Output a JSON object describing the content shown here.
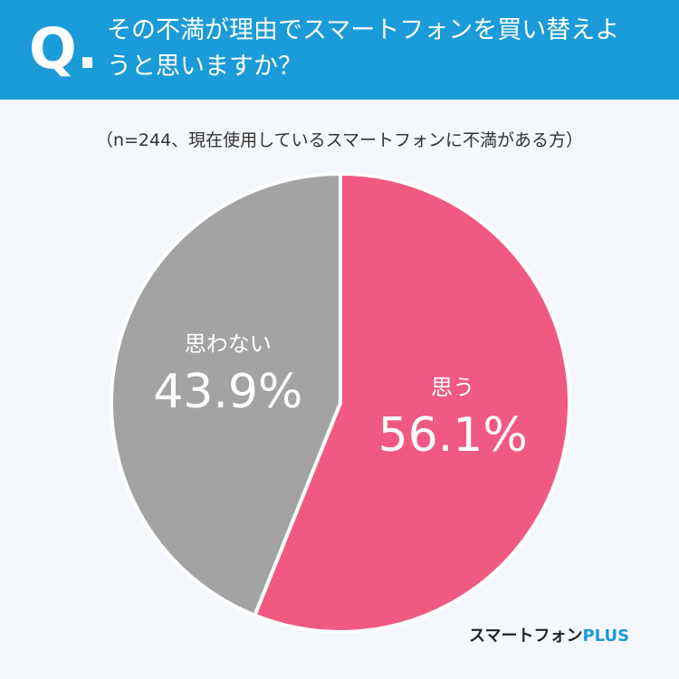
{
  "chart_data": {
    "type": "pie",
    "question_label": "Q.",
    "title": "その不満が理由でスマートフォンを買い替えようと思いますか？",
    "subtitle": "（n=244、現在使用しているスマートフォンに不満がある方）",
    "categories": [
      "思う",
      "思わない"
    ],
    "values": [
      56.1,
      43.9
    ],
    "value_labels": [
      "56.1%",
      "43.9%"
    ],
    "colors": [
      "#f05a82",
      "#a3a3a3"
    ]
  },
  "logo": {
    "text": "スマートフォン",
    "suffix": "PLUS"
  }
}
